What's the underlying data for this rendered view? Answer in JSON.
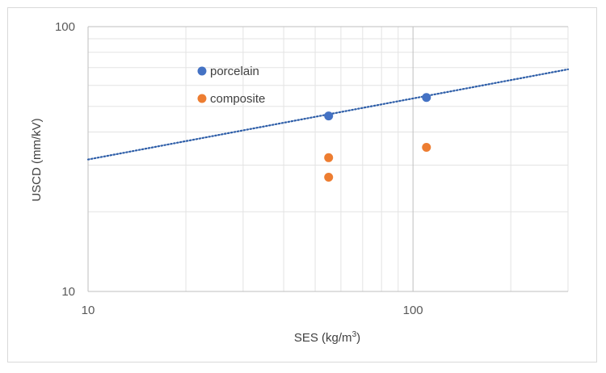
{
  "chart_data": {
    "type": "scatter",
    "xlabel": "SES (kg/m",
    "xlabel_sup": "3",
    "xlabel_tail": ")",
    "ylabel": "USCD (mm/kV)",
    "xscale": "log",
    "yscale": "log",
    "xlim": [
      10,
      300
    ],
    "ylim": [
      10,
      100
    ],
    "x_ticks": [
      10,
      100
    ],
    "y_ticks": [
      10,
      100
    ],
    "x_tick_labels": [
      "10",
      "100"
    ],
    "y_tick_labels": [
      "10",
      "100"
    ],
    "grid": true,
    "legend_position": "top-left",
    "series": [
      {
        "name": "porcelain",
        "color": "#4472c4",
        "x": [
          55,
          110
        ],
        "y": [
          46,
          54
        ]
      },
      {
        "name": "composite",
        "color": "#ed7d31",
        "x": [
          55,
          55,
          110
        ],
        "y": [
          32,
          27,
          35
        ]
      }
    ],
    "trendline": {
      "series": "porcelain",
      "type": "power",
      "color": "#2e5ea8",
      "style": "dotted",
      "x": [
        10,
        300
      ],
      "y": [
        31.5,
        69
      ]
    }
  }
}
